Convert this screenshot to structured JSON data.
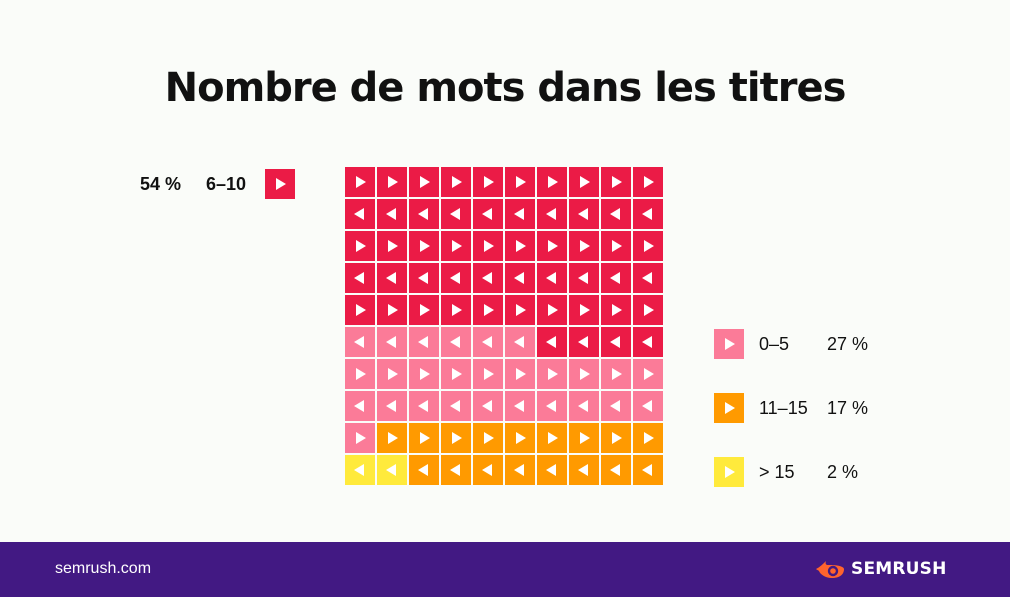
{
  "title": "Nombre de mots dans les titres",
  "colors": {
    "background": "#fafcf9",
    "footer": "#421983",
    "title": "#111111",
    "brand_orange": "#ff642d"
  },
  "legend": [
    {
      "range": "6–10",
      "pct": "54 %",
      "color": "#eb1b46",
      "icon": "play-icon"
    },
    {
      "range": "0–5",
      "pct": "27 %",
      "color": "#fb7b98",
      "icon": "play-icon"
    },
    {
      "range": "11–15",
      "pct": "17 %",
      "color": "#ff9a00",
      "icon": "play-icon"
    },
    {
      "range": "> 15",
      "pct": "2 %",
      "color": "#ffea3c",
      "icon": "play-icon"
    }
  ],
  "chart_data": {
    "type": "waffle",
    "title": "Nombre de mots dans les titres",
    "grid": {
      "rows": 10,
      "cols": 10
    },
    "fill_order": "serpentine rows, top-left start",
    "categories": [
      "6–10",
      "0–5",
      "11–15",
      "> 15"
    ],
    "values": [
      54,
      27,
      17,
      2
    ],
    "unit": "%",
    "colors": [
      "#eb1b46",
      "#fb7b98",
      "#ff9a00",
      "#ffea3c"
    ]
  },
  "footer": {
    "url": "semrush.com",
    "brand": "SEMRUSH"
  }
}
